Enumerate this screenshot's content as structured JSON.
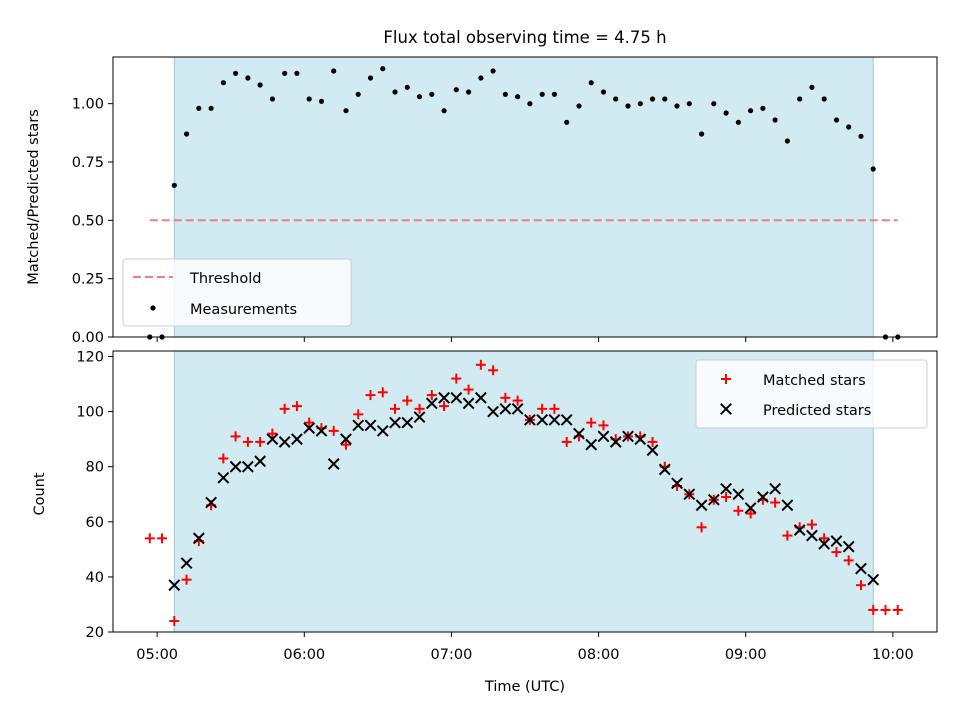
{
  "chart_data": [
    {
      "type": "scatter",
      "title": "Flux total observing time = 4.75 h",
      "xlabel": "",
      "ylabel": "Matched/Predicted stars",
      "xlim": [
        "04:42",
        "10:18"
      ],
      "ylim": [
        0,
        1.2
      ],
      "yticks": [
        "0.00",
        "0.25",
        "0.50",
        "0.75",
        "1.00"
      ],
      "legend_position": "lower-left",
      "shaded_span": [
        "05:07",
        "09:52"
      ],
      "threshold": {
        "name": "Threshold",
        "value": 0.5,
        "x_range": [
          "04:57",
          "10:02"
        ],
        "color": "#f08080"
      },
      "series": [
        {
          "name": "Measurements",
          "color": "#000000",
          "x": [
            "04:57",
            "05:02",
            "05:07",
            "05:12",
            "05:17",
            "05:22",
            "05:27",
            "05:32",
            "05:37",
            "05:42",
            "05:47",
            "05:52",
            "05:57",
            "06:02",
            "06:07",
            "06:12",
            "06:17",
            "06:22",
            "06:27",
            "06:32",
            "06:37",
            "06:42",
            "06:47",
            "06:52",
            "06:57",
            "07:02",
            "07:07",
            "07:12",
            "07:17",
            "07:22",
            "07:27",
            "07:32",
            "07:37",
            "07:42",
            "07:47",
            "07:52",
            "07:57",
            "08:02",
            "08:07",
            "08:12",
            "08:17",
            "08:22",
            "08:27",
            "08:32",
            "08:37",
            "08:42",
            "08:47",
            "08:52",
            "08:57",
            "09:02",
            "09:07",
            "09:12",
            "09:17",
            "09:22",
            "09:27",
            "09:32",
            "09:37",
            "09:42",
            "09:47",
            "09:52",
            "09:57",
            "10:02"
          ],
          "y": [
            0.0,
            0.0,
            0.65,
            0.87,
            0.98,
            0.98,
            1.09,
            1.13,
            1.11,
            1.08,
            1.02,
            1.13,
            1.13,
            1.02,
            1.01,
            1.14,
            0.97,
            1.04,
            1.11,
            1.15,
            1.05,
            1.07,
            1.03,
            1.04,
            0.97,
            1.06,
            1.05,
            1.11,
            1.14,
            1.04,
            1.03,
            1.0,
            1.04,
            1.04,
            0.92,
            0.99,
            1.09,
            1.05,
            1.02,
            0.99,
            1.0,
            1.02,
            1.02,
            0.99,
            1.0,
            0.87,
            1.0,
            0.96,
            0.92,
            0.97,
            0.98,
            0.93,
            0.84,
            1.02,
            1.07,
            1.02,
            0.93,
            0.9,
            0.86,
            0.72,
            0.0,
            0.0
          ]
        }
      ]
    },
    {
      "type": "scatter",
      "title": "",
      "xlabel": "Time (UTC)",
      "ylabel": "Count",
      "xlim": [
        "04:42",
        "10:18"
      ],
      "ylim": [
        20,
        122
      ],
      "xticks": [
        "05:00",
        "06:00",
        "07:00",
        "08:00",
        "09:00",
        "10:00"
      ],
      "yticks": [
        "20",
        "40",
        "60",
        "80",
        "100",
        "120"
      ],
      "legend_position": "upper-right",
      "shaded_span": [
        "05:07",
        "09:52"
      ],
      "series": [
        {
          "name": "Matched stars",
          "color": "#ff0000",
          "x": [
            "04:57",
            "05:02",
            "05:07",
            "05:12",
            "05:17",
            "05:22",
            "05:27",
            "05:32",
            "05:37",
            "05:42",
            "05:47",
            "05:52",
            "05:57",
            "06:02",
            "06:07",
            "06:12",
            "06:17",
            "06:22",
            "06:27",
            "06:32",
            "06:37",
            "06:42",
            "06:47",
            "06:52",
            "06:57",
            "07:02",
            "07:07",
            "07:12",
            "07:17",
            "07:22",
            "07:27",
            "07:32",
            "07:37",
            "07:42",
            "07:47",
            "07:52",
            "07:57",
            "08:02",
            "08:07",
            "08:12",
            "08:17",
            "08:22",
            "08:27",
            "08:32",
            "08:37",
            "08:42",
            "08:47",
            "08:52",
            "08:57",
            "09:02",
            "09:07",
            "09:12",
            "09:17",
            "09:22",
            "09:27",
            "09:32",
            "09:37",
            "09:42",
            "09:47",
            "09:52",
            "09:57",
            "10:02"
          ],
          "y": [
            54,
            54,
            24,
            39,
            53,
            66,
            83,
            91,
            89,
            89,
            92,
            101,
            102,
            96,
            94,
            93,
            88,
            99,
            106,
            107,
            101,
            104,
            101,
            106,
            102,
            112,
            108,
            117,
            115,
            105,
            104,
            97,
            101,
            101,
            89,
            91,
            96,
            95,
            90,
            91,
            91,
            89,
            80,
            73,
            70,
            58,
            68,
            69,
            64,
            63,
            68,
            67,
            55,
            58,
            59,
            54,
            49,
            46,
            37,
            28,
            28,
            28
          ]
        },
        {
          "name": "Predicted stars",
          "color": "#000000",
          "x": [
            "05:07",
            "05:12",
            "05:17",
            "05:22",
            "05:27",
            "05:32",
            "05:37",
            "05:42",
            "05:47",
            "05:52",
            "05:57",
            "06:02",
            "06:07",
            "06:12",
            "06:17",
            "06:22",
            "06:27",
            "06:32",
            "06:37",
            "06:42",
            "06:47",
            "06:52",
            "06:57",
            "07:02",
            "07:07",
            "07:12",
            "07:17",
            "07:22",
            "07:27",
            "07:32",
            "07:37",
            "07:42",
            "07:47",
            "07:52",
            "07:57",
            "08:02",
            "08:07",
            "08:12",
            "08:17",
            "08:22",
            "08:27",
            "08:32",
            "08:37",
            "08:42",
            "08:47",
            "08:52",
            "08:57",
            "09:02",
            "09:07",
            "09:12",
            "09:17",
            "09:22",
            "09:27",
            "09:32",
            "09:37",
            "09:42",
            "09:47",
            "09:52"
          ],
          "y": [
            37,
            45,
            54,
            67,
            76,
            80,
            80,
            82,
            90,
            89,
            90,
            94,
            93,
            81,
            90,
            95,
            95,
            93,
            96,
            96,
            98,
            103,
            105,
            105,
            103,
            105,
            100,
            101,
            101,
            97,
            97,
            97,
            97,
            92,
            88,
            91,
            89,
            91,
            90,
            86,
            79,
            74,
            70,
            66,
            68,
            72,
            70,
            65,
            69,
            72,
            66,
            57,
            55,
            52,
            53,
            51,
            43,
            39
          ]
        }
      ]
    }
  ]
}
